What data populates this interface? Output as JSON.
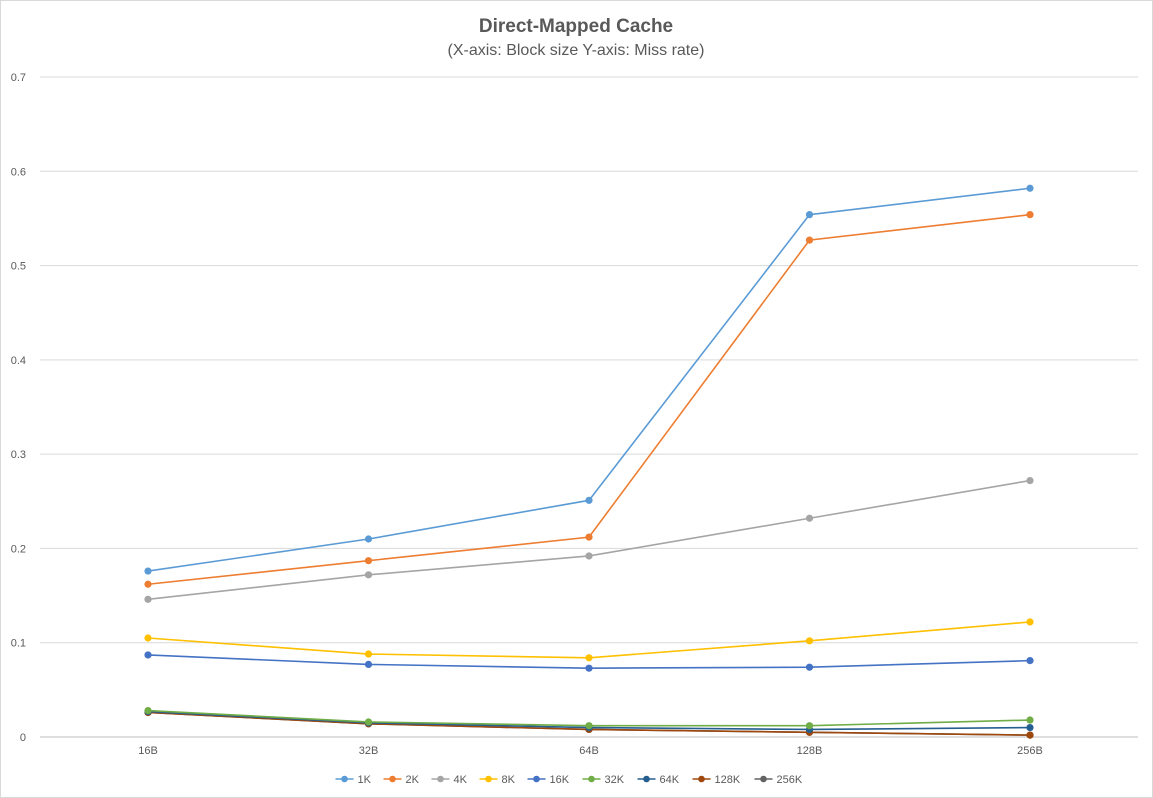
{
  "chart_data": {
    "type": "line",
    "title": "Direct-Mapped Cache",
    "subtitle": "(X-axis: Block size Y-axis: Miss rate)",
    "xlabel": "",
    "ylabel": "",
    "categories": [
      "16B",
      "32B",
      "64B",
      "128B",
      "256B"
    ],
    "ylim": [
      0,
      0.7
    ],
    "yticks": [
      0,
      0.1,
      0.2,
      0.3,
      0.4,
      0.5,
      0.6,
      0.7
    ],
    "ytick_labels": [
      "0",
      "0.1",
      "0.2",
      "0.3",
      "0.4",
      "0.5",
      "0.6",
      "0.7"
    ],
    "grid": true,
    "legend_position": "bottom",
    "series": [
      {
        "name": "1K",
        "color": "#5B9BD5",
        "values": [
          0.176,
          0.21,
          0.251,
          0.554,
          0.582
        ]
      },
      {
        "name": "2K",
        "color": "#ED7D31",
        "values": [
          0.162,
          0.187,
          0.212,
          0.527,
          0.554
        ]
      },
      {
        "name": "4K",
        "color": "#A5A5A5",
        "values": [
          0.146,
          0.172,
          0.192,
          0.232,
          0.272
        ]
      },
      {
        "name": "8K",
        "color": "#FFC000",
        "values": [
          0.105,
          0.088,
          0.084,
          0.102,
          0.122
        ]
      },
      {
        "name": "16K",
        "color": "#4472C4",
        "values": [
          0.087,
          0.077,
          0.073,
          0.074,
          0.081
        ]
      },
      {
        "name": "32K",
        "color": "#70AD47",
        "values": [
          0.028,
          0.016,
          0.012,
          0.012,
          0.018
        ]
      },
      {
        "name": "64K",
        "color": "#255E91",
        "values": [
          0.027,
          0.015,
          0.01,
          0.008,
          0.01
        ]
      },
      {
        "name": "128K",
        "color": "#9E480E",
        "values": [
          0.026,
          0.014,
          0.008,
          0.005,
          0.002
        ]
      },
      {
        "name": "256K",
        "color": "#636363",
        "values": [
          0.026,
          0.014,
          0.008,
          0.005,
          0.002
        ]
      }
    ]
  }
}
